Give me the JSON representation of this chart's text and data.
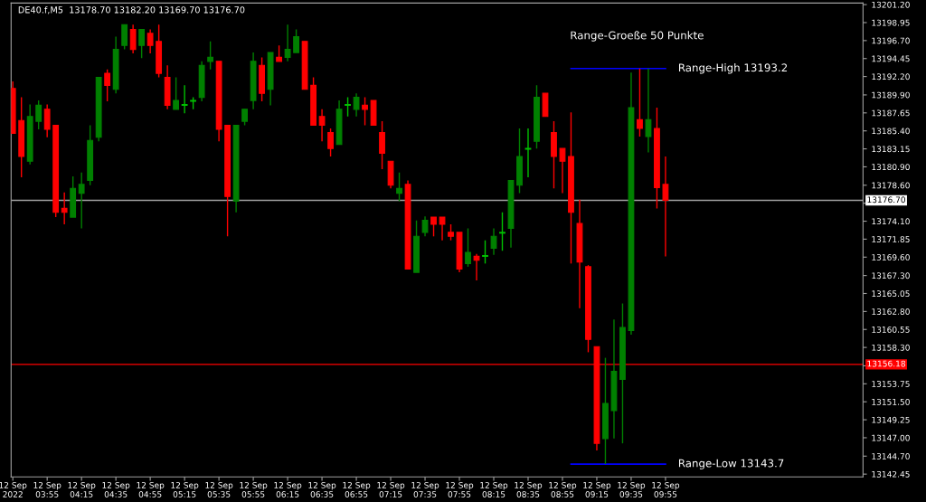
{
  "chart_data": {
    "type": "candlestick",
    "title": "DE40.f,M5  13178.70 13182.20 13169.70 13176.70",
    "x": [
      "2022-09-12T03:35",
      "2022-09-12T03:40",
      "2022-09-12T03:45",
      "2022-09-12T03:50",
      "2022-09-12T03:55",
      "2022-09-12T04:00",
      "2022-09-12T04:05",
      "2022-09-12T04:10",
      "2022-09-12T04:15",
      "2022-09-12T04:20",
      "2022-09-12T04:25",
      "2022-09-12T04:30",
      "2022-09-12T04:35",
      "2022-09-12T04:40",
      "2022-09-12T04:45",
      "2022-09-12T04:50",
      "2022-09-12T04:55",
      "2022-09-12T05:00",
      "2022-09-12T05:05",
      "2022-09-12T05:10",
      "2022-09-12T05:15",
      "2022-09-12T05:20",
      "2022-09-12T05:25",
      "2022-09-12T05:30",
      "2022-09-12T05:35",
      "2022-09-12T05:40",
      "2022-09-12T05:45",
      "2022-09-12T05:50",
      "2022-09-12T05:55",
      "2022-09-12T06:00",
      "2022-09-12T06:05",
      "2022-09-12T06:10",
      "2022-09-12T06:15",
      "2022-09-12T06:20",
      "2022-09-12T06:25",
      "2022-09-12T06:30",
      "2022-09-12T06:35",
      "2022-09-12T06:40",
      "2022-09-12T06:45",
      "2022-09-12T06:50",
      "2022-09-12T06:55",
      "2022-09-12T07:00",
      "2022-09-12T07:05",
      "2022-09-12T07:10",
      "2022-09-12T07:15",
      "2022-09-12T07:20",
      "2022-09-12T07:25",
      "2022-09-12T07:30",
      "2022-09-12T07:35",
      "2022-09-12T07:40",
      "2022-09-12T07:45",
      "2022-09-12T07:50",
      "2022-09-12T07:55",
      "2022-09-12T08:00",
      "2022-09-12T08:05",
      "2022-09-12T08:10",
      "2022-09-12T08:15",
      "2022-09-12T08:20",
      "2022-09-12T08:25",
      "2022-09-12T08:30",
      "2022-09-12T08:35",
      "2022-09-12T08:40",
      "2022-09-12T08:45",
      "2022-09-12T08:50",
      "2022-09-12T08:55",
      "2022-09-12T09:00",
      "2022-09-12T09:05",
      "2022-09-12T09:10",
      "2022-09-12T09:15",
      "2022-09-12T09:20",
      "2022-09-12T09:25",
      "2022-09-12T09:30",
      "2022-09-12T09:35",
      "2022-09-12T09:40",
      "2022-09-12T09:45",
      "2022-09-12T09:50",
      "2022-09-12T09:55"
    ],
    "ohlc": [
      [
        13190.7,
        13191.6,
        13185.1,
        13185.1
      ],
      [
        13186.7,
        13189.6,
        13179.6,
        13182.2
      ],
      [
        13181.6,
        13188.7,
        13181.2,
        13187.2
      ],
      [
        13186.6,
        13189.2,
        13185.6,
        13188.6
      ],
      [
        13188.1,
        13188.7,
        13184.6,
        13185.6
      ],
      [
        13186.1,
        13186.1,
        13174.6,
        13175.2
      ],
      [
        13175.7,
        13177.7,
        13173.7,
        13175.2
      ],
      [
        13174.6,
        13179.7,
        13174.6,
        13178.2
      ],
      [
        13177.6,
        13180.2,
        13173.2,
        13178.7
      ],
      [
        13179.2,
        13186.1,
        13178.6,
        13184.2
      ],
      [
        13184.6,
        13192.1,
        13184.1,
        13192.1
      ],
      [
        13192.6,
        13193.1,
        13189.1,
        13191.1
      ],
      [
        13190.6,
        13197.2,
        13190.1,
        13195.6
      ],
      [
        13196.1,
        13198.7,
        13195.6,
        13198.7
      ],
      [
        13198.1,
        13198.7,
        13195.1,
        13195.6
      ],
      [
        13196.1,
        13198.1,
        13194.5,
        13198.1
      ],
      [
        13197.6,
        13198.1,
        13195.1,
        13196.1
      ],
      [
        13196.6,
        13198.7,
        13192.1,
        13192.6
      ],
      [
        13192.1,
        13193.6,
        13188.1,
        13188.6
      ],
      [
        13188.1,
        13192.1,
        13188.1,
        13189.2
      ],
      [
        13188.6,
        13191.1,
        13187.6,
        13188.7
      ],
      [
        13189.1,
        13189.6,
        13188.1,
        13189.2
      ],
      [
        13189.6,
        13194.1,
        13189.1,
        13193.6
      ],
      [
        13194.1,
        13196.6,
        13193.1,
        13194.6
      ],
      [
        13194.1,
        13194.1,
        13184.1,
        13185.6
      ],
      [
        13186.1,
        13186.1,
        13172.2,
        13177.2
      ],
      [
        13176.6,
        13186.1,
        13175.2,
        13186.1
      ],
      [
        13186.6,
        13188.1,
        13186.1,
        13188.1
      ],
      [
        13189.2,
        13195.2,
        13188.1,
        13194.1
      ],
      [
        13193.6,
        13194.6,
        13189.1,
        13190.1
      ],
      [
        13190.6,
        13195.2,
        13188.6,
        13195.2
      ],
      [
        13194.6,
        13196.1,
        13194.1,
        13194.1
      ],
      [
        13194.6,
        13198.7,
        13194.1,
        13195.6
      ],
      [
        13195.2,
        13198.1,
        13195.2,
        13197.2
      ],
      [
        13196.6,
        13196.6,
        13190.6,
        13190.6
      ],
      [
        13191.1,
        13192.1,
        13186.1,
        13186.1
      ],
      [
        13187.2,
        13188.1,
        13184.1,
        13186.1
      ],
      [
        13185.2,
        13185.7,
        13182.2,
        13183.2
      ],
      [
        13183.7,
        13189.2,
        13183.7,
        13188.1
      ],
      [
        13188.6,
        13189.6,
        13187.2,
        13188.7
      ],
      [
        13188.1,
        13190.1,
        13187.2,
        13189.6
      ],
      [
        13188.6,
        13189.6,
        13186.1,
        13188.1
      ],
      [
        13189.2,
        13189.2,
        13186.1,
        13186.1
      ],
      [
        13185.2,
        13186.6,
        13180.6,
        13182.6
      ],
      [
        13181.6,
        13181.6,
        13178.2,
        13178.6
      ],
      [
        13177.6,
        13180.2,
        13176.6,
        13178.2
      ],
      [
        13178.7,
        13179.2,
        13168.1,
        13168.1
      ],
      [
        13167.7,
        13174.2,
        13167.7,
        13172.2
      ],
      [
        13172.7,
        13174.7,
        13172.2,
        13174.2
      ],
      [
        13174.6,
        13174.6,
        13172.2,
        13173.7
      ],
      [
        13174.6,
        13174.6,
        13171.7,
        13173.7
      ],
      [
        13172.7,
        13173.7,
        13171.7,
        13172.2
      ],
      [
        13172.7,
        13172.7,
        13167.7,
        13168.1
      ],
      [
        13168.8,
        13173.2,
        13168.4,
        13170.2
      ],
      [
        13169.7,
        13170.0,
        13166.7,
        13169.2
      ],
      [
        13169.7,
        13171.7,
        13168.8,
        13169.8
      ],
      [
        13170.7,
        13173.2,
        13169.9,
        13172.2
      ],
      [
        13172.6,
        13175.2,
        13170.4,
        13172.7
      ],
      [
        13173.2,
        13179.2,
        13170.8,
        13179.2
      ],
      [
        13178.6,
        13185.7,
        13177.6,
        13182.2
      ],
      [
        13183.1,
        13185.7,
        13179.6,
        13183.2
      ],
      [
        13184.1,
        13191.1,
        13183.2,
        13189.6
      ],
      [
        13190.1,
        13190.1,
        13187.2,
        13187.2
      ],
      [
        13185.2,
        13186.6,
        13178.2,
        13182.2
      ],
      [
        13183.2,
        13183.2,
        13177.6,
        13181.6
      ],
      [
        13182.2,
        13187.7,
        13168.8,
        13175.2
      ],
      [
        13173.8,
        13176.8,
        13163.2,
        13169.0
      ],
      [
        13168.4,
        13168.6,
        13157.7,
        13159.3
      ],
      [
        13158.4,
        13158.4,
        13145.4,
        13146.3
      ],
      [
        13146.9,
        13157.0,
        13143.7,
        13151.3
      ],
      [
        13150.4,
        13161.8,
        13146.9,
        13155.3
      ],
      [
        13154.3,
        13163.8,
        13146.3,
        13160.8
      ],
      [
        13160.4,
        13192.7,
        13159.9,
        13188.3
      ],
      [
        13186.8,
        13193.2,
        13184.7,
        13185.7
      ],
      [
        13184.7,
        13193.2,
        13182.7,
        13186.8
      ],
      [
        13185.7,
        13188.3,
        13175.7,
        13178.3
      ],
      [
        13178.7,
        13182.2,
        13169.7,
        13176.7
      ]
    ],
    "colors": [
      "#ff0000",
      "#ff0000",
      "#008000",
      "#008000",
      "#ff0000",
      "#ff0000",
      "#ff0000",
      "#008000",
      "#008000",
      "#008000",
      "#008000",
      "#ff0000",
      "#008000",
      "#008000",
      "#ff0000",
      "#008000",
      "#ff0000",
      "#ff0000",
      "#ff0000",
      "#008000",
      "#00c000",
      "#00c000",
      "#008000",
      "#008000",
      "#ff0000",
      "#ff0000",
      "#008000",
      "#008000",
      "#008000",
      "#ff0000",
      "#008000",
      "#ff0000",
      "#008000",
      "#008000",
      "#ff0000",
      "#ff0000",
      "#ff0000",
      "#ff0000",
      "#008000",
      "#00c000",
      "#008000",
      "#ff0000",
      "#ff0000",
      "#ff0000",
      "#ff0000",
      "#008000",
      "#ff0000",
      "#008000",
      "#008000",
      "#ff0000",
      "#ff0000",
      "#ff0000",
      "#ff0000",
      "#008000",
      "#ff0000",
      "#00c000",
      "#008000",
      "#00c000",
      "#008000",
      "#008000",
      "#00c000",
      "#008000",
      "#ff0000",
      "#ff0000",
      "#ff0000",
      "#ff0000",
      "#ff0000",
      "#ff0000",
      "#ff0000",
      "#008000",
      "#008000",
      "#008000",
      "#008000",
      "#ff0000",
      "#008000",
      "#ff0000",
      "#ff0000"
    ],
    "series": [
      {
        "type": "line",
        "color": "#0000ff",
        "x": [
          "2022-09-12T09:00",
          "2022-09-12T09:55"
        ],
        "values": [
          13193.2,
          13193.2
        ]
      },
      {
        "type": "line",
        "color": "#0000ff",
        "x": [
          "2022-09-12T09:00",
          "2022-09-12T09:55"
        ],
        "values": [
          13143.7,
          13143.7
        ]
      }
    ],
    "ref_lines": [
      {
        "axis": "y",
        "value": 13176.7,
        "label": "13176.70",
        "color": "#a0a0a0"
      },
      {
        "axis": "y",
        "value": 13156.18,
        "label": "13156.18",
        "color": "#ff0000"
      }
    ],
    "annotations": [
      "Range-Groeße 50 Punkte",
      {
        "text": "Range-High 13193.2",
        "x": "2022-09-12T09:55",
        "y": 13193.2
      },
      {
        "text": "Range-Low 13143.7",
        "x": "2022-09-12T09:55",
        "y": 13143.7
      }
    ],
    "xlim": [
      "2022-09-12T03:34",
      "2022-09-12T11:50"
    ],
    "xticks": [
      {
        "value": "2022-09-12T03:35",
        "label": "12 Sep 2022"
      },
      {
        "value": "2022-09-12T03:55",
        "label": "12 Sep 03:55"
      },
      {
        "value": "2022-09-12T04:15",
        "label": "12 Sep 04:15"
      },
      {
        "value": "2022-09-12T04:35",
        "label": "12 Sep 04:35"
      },
      {
        "value": "2022-09-12T04:55",
        "label": "12 Sep 04:55"
      },
      {
        "value": "2022-09-12T05:15",
        "label": "12 Sep 05:15"
      },
      {
        "value": "2022-09-12T05:35",
        "label": "12 Sep 05:35"
      },
      {
        "value": "2022-09-12T05:55",
        "label": "12 Sep 05:55"
      },
      {
        "value": "2022-09-12T06:15",
        "label": "12 Sep 06:15"
      },
      {
        "value": "2022-09-12T06:35",
        "label": "12 Sep 06:35"
      },
      {
        "value": "2022-09-12T06:55",
        "label": "12 Sep 06:55"
      },
      {
        "value": "2022-09-12T07:15",
        "label": "12 Sep 07:15"
      },
      {
        "value": "2022-09-12T07:35",
        "label": "12 Sep 07:35"
      },
      {
        "value": "2022-09-12T07:55",
        "label": "12 Sep 07:55"
      },
      {
        "value": "2022-09-12T08:15",
        "label": "12 Sep 08:15"
      },
      {
        "value": "2022-09-12T08:35",
        "label": "12 Sep 08:35"
      },
      {
        "value": "2022-09-12T08:55",
        "label": "12 Sep 08:55"
      },
      {
        "value": "2022-09-12T09:15",
        "label": "12 Sep 09:15"
      },
      {
        "value": "2022-09-12T09:35",
        "label": "12 Sep 09:35"
      },
      {
        "value": "2022-09-12T09:55",
        "label": "12 Sep 09:55"
      }
    ],
    "ylim": [
      13142.1,
      13201.4
    ],
    "yticks": [
      {
        "value": 13201.2,
        "label": "13201.20"
      },
      {
        "value": 13198.95,
        "label": "13198.95"
      },
      {
        "value": 13196.7,
        "label": "13196.70"
      },
      {
        "value": 13194.45,
        "label": "13194.45"
      },
      {
        "value": 13192.2,
        "label": "13192.20"
      },
      {
        "value": 13189.9,
        "label": "13189.90"
      },
      {
        "value": 13187.65,
        "label": "13187.65"
      },
      {
        "value": 13185.4,
        "label": "13185.40"
      },
      {
        "value": 13183.15,
        "label": "13183.15"
      },
      {
        "value": 13180.9,
        "label": "13180.90"
      },
      {
        "value": 13178.6,
        "label": "13178.60"
      },
      {
        "value": 13176.35,
        "label": null
      },
      {
        "value": 13174.1,
        "label": "13174.10"
      },
      {
        "value": 13171.85,
        "label": "13171.85"
      },
      {
        "value": 13169.6,
        "label": "13169.60"
      },
      {
        "value": 13167.3,
        "label": "13167.30"
      },
      {
        "value": 13165.05,
        "label": "13165.05"
      },
      {
        "value": 13162.8,
        "label": "13162.80"
      },
      {
        "value": 13160.55,
        "label": "13160.55"
      },
      {
        "value": 13158.3,
        "label": "13158.30"
      },
      {
        "value": 13156.0,
        "label": null
      },
      {
        "value": 13153.75,
        "label": "13153.75"
      },
      {
        "value": 13151.5,
        "label": "13151.50"
      },
      {
        "value": 13149.25,
        "label": "13149.25"
      },
      {
        "value": 13147.0,
        "label": "13147.00"
      },
      {
        "value": 13144.7,
        "label": "13144.70"
      },
      {
        "value": 13142.45,
        "label": "13142.45"
      }
    ],
    "grid": false
  }
}
